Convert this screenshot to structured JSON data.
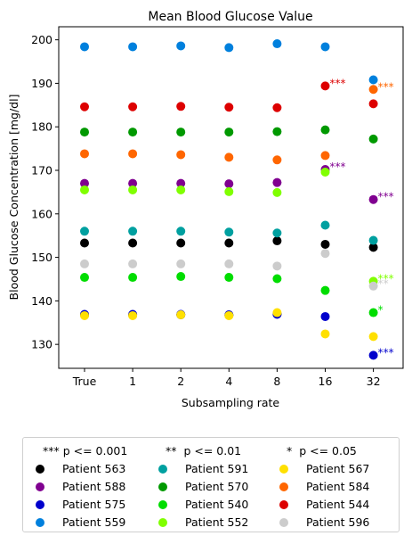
{
  "chart_data": {
    "type": "scatter",
    "title": "Mean Blood Glucose Value",
    "xlabel": "Subsampling rate",
    "ylabel": "Blood Glucose Concentration [mg/dl]",
    "categories": [
      "True",
      "1",
      "2",
      "4",
      "8",
      "16",
      "32"
    ],
    "ylim": [
      124.5,
      203
    ],
    "yticks": [
      130,
      140,
      150,
      160,
      170,
      180,
      190,
      200
    ],
    "grid": false,
    "series": [
      {
        "name": "Patient 563",
        "color": "#000000",
        "values": [
          153.3,
          153.3,
          153.3,
          153.3,
          153.8,
          153.0,
          152.3
        ]
      },
      {
        "name": "Patient 563",
        "color": "#000000",
        "values": [
          136.8,
          136.8,
          136.8,
          136.7,
          137.0,
          null,
          null
        ]
      },
      {
        "name": "Patient 588",
        "color": "#800090",
        "values": [
          167.0,
          167.0,
          167.0,
          166.9,
          167.2,
          170.2,
          163.3
        ]
      },
      {
        "name": "Patient 575",
        "color": "#0000cc",
        "values": [
          136.9,
          136.9,
          136.9,
          136.8,
          136.9,
          136.4,
          127.5
        ]
      },
      {
        "name": "Patient 559",
        "color": "#0080dd",
        "values": [
          198.4,
          198.4,
          198.6,
          198.2,
          199.1,
          198.4,
          190.8
        ]
      },
      {
        "name": "Patient 591",
        "color": "#00a0a0",
        "values": [
          156.0,
          156.0,
          156.0,
          155.8,
          155.6,
          157.4,
          153.9
        ]
      },
      {
        "name": "Patient 570",
        "color": "#009900",
        "values": [
          178.8,
          178.8,
          178.8,
          178.8,
          178.9,
          179.3,
          177.2
        ]
      },
      {
        "name": "Patient 540",
        "color": "#00dd00",
        "values": [
          145.4,
          145.4,
          145.6,
          145.4,
          145.1,
          142.4,
          137.3
        ]
      },
      {
        "name": "Patient 552",
        "color": "#80ff00",
        "values": [
          165.5,
          165.5,
          165.5,
          165.1,
          164.9,
          169.6,
          144.5
        ]
      },
      {
        "name": "Patient 567",
        "color": "#ffe000",
        "values": [
          136.6,
          136.6,
          136.8,
          136.6,
          137.3,
          132.4,
          131.8
        ]
      },
      {
        "name": "Patient 584",
        "color": "#ff6600",
        "values": [
          173.8,
          173.8,
          173.6,
          173.0,
          172.4,
          173.4,
          188.6
        ]
      },
      {
        "name": "Patient 544",
        "color": "#dd0000",
        "values": [
          184.6,
          184.6,
          184.7,
          184.5,
          184.4,
          189.4,
          185.3
        ]
      },
      {
        "name": "Patient 596",
        "color": "#cccccc",
        "values": [
          148.5,
          148.5,
          148.5,
          148.5,
          148.0,
          150.9,
          143.4
        ]
      }
    ],
    "annotations": [
      {
        "text": "***",
        "category": "16",
        "y": 189.4,
        "color": "#dd0000"
      },
      {
        "text": "***",
        "category": "32",
        "y": 188.6,
        "color": "#ff6600"
      },
      {
        "text": "***",
        "category": "16",
        "y": 170.2,
        "color": "#800090"
      },
      {
        "text": "***",
        "category": "32",
        "y": 163.3,
        "color": "#800090"
      },
      {
        "text": "***",
        "category": "32",
        "y": 144.5,
        "color": "#80ff00"
      },
      {
        "text": "**",
        "category": "32",
        "y": 143.4,
        "color": "#cccccc"
      },
      {
        "text": "*",
        "category": "32",
        "y": 137.3,
        "color": "#00dd00"
      },
      {
        "text": "***",
        "category": "32",
        "y": 127.5,
        "color": "#0000cc"
      }
    ]
  },
  "legend": {
    "placement": "bottom",
    "headers": [
      "*** p <= 0.001",
      "**  p <= 0.01",
      "*  p <= 0.05"
    ],
    "columns": [
      [
        {
          "label": "Patient 563",
          "color": "#000000"
        },
        {
          "label": "Patient 588",
          "color": "#800090"
        },
        {
          "label": "Patient 575",
          "color": "#0000cc"
        },
        {
          "label": "Patient 559",
          "color": "#0080dd"
        }
      ],
      [
        {
          "label": "Patient 591",
          "color": "#00a0a0"
        },
        {
          "label": "Patient 570",
          "color": "#009900"
        },
        {
          "label": "Patient 540",
          "color": "#00dd00"
        },
        {
          "label": "Patient 552",
          "color": "#80ff00"
        }
      ],
      [
        {
          "label": "Patient 567",
          "color": "#ffe000"
        },
        {
          "label": "Patient 584",
          "color": "#ff6600"
        },
        {
          "label": "Patient 544",
          "color": "#dd0000"
        },
        {
          "label": "Patient 596",
          "color": "#cccccc"
        }
      ]
    ]
  }
}
